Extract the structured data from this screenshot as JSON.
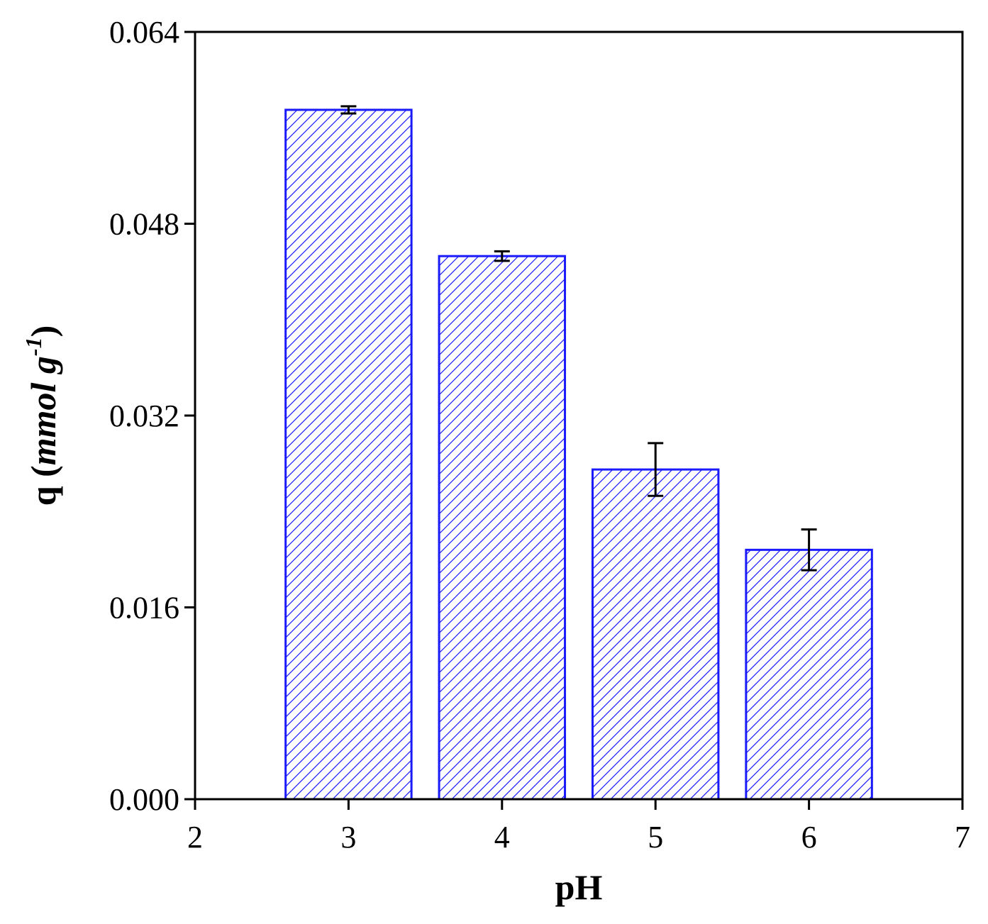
{
  "chart_data": {
    "type": "bar",
    "x": [
      3,
      4,
      5,
      6
    ],
    "values": [
      0.0575,
      0.0453,
      0.0275,
      0.0208
    ],
    "error": [
      0.0003,
      0.0004,
      0.0022,
      0.0017
    ],
    "xlabel": "pH",
    "ylabel": {
      "prefix": "q (",
      "units": "mmol g",
      "exponent": "-1",
      "suffix": ")"
    },
    "xlim": [
      2,
      7
    ],
    "ylim": [
      0,
      0.064
    ],
    "xticks": [
      "2",
      "3",
      "4",
      "5",
      "6",
      "7"
    ],
    "yticks": [
      "0.000",
      "0.016",
      "0.032",
      "0.048",
      "0.064"
    ],
    "grid": false,
    "legend": "none",
    "bar_pattern": "diagonal-hatch",
    "colors": {
      "bar_edge": "#1a1aff",
      "hatch": "#1a1aff",
      "error_bar": "#000000",
      "axis": "#000000"
    }
  }
}
